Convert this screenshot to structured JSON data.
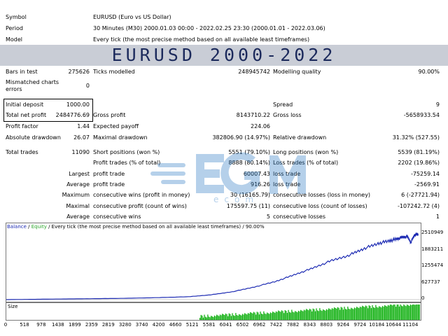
{
  "header": {
    "symbol_label": "Symbol",
    "symbol_value": "EURUSD (Euro vs US Dollar)",
    "period_label": "Period",
    "period_value": "30 Minutes (M30) 2000.01.03 00:00 - 2022.02.25 23:30 (2000.01.01 - 2022.03.06)",
    "model_label": "Model",
    "model_value": "Every tick (the most precise method based on all available least timeframes)"
  },
  "banner": {
    "title": "EURUSD 2000-2022"
  },
  "stats": {
    "bars_label": "Bars in test",
    "bars_value": "275626",
    "ticks_label": "Ticks modelled",
    "ticks_value": "248945742",
    "quality_label": "Modelling quality",
    "quality_value": "90.00%",
    "mismatch_label_1": "Mismatched charts",
    "mismatch_label_2": "errors",
    "mismatch_value": "0",
    "deposit_label": "Initial deposit",
    "deposit_value": "1000.00",
    "spread_label": "Spread",
    "spread_value": "9",
    "net_label": "Total net profit",
    "net_value": "2484776.69",
    "gross_profit_label": "Gross profit",
    "gross_profit_value": "8143710.22",
    "gross_loss_label": "Gross loss",
    "gross_loss_value": "-5658933.54",
    "pf_label": "Profit factor",
    "pf_value": "1.44",
    "payoff_label": "Expected payoff",
    "payoff_value": "224.06",
    "abs_dd_label": "Absolute drawdown",
    "abs_dd_value": "26.07",
    "max_dd_label": "Maximal drawdown",
    "max_dd_value": "382806.90 (14.97%)",
    "rel_dd_label": "Relative drawdown",
    "rel_dd_value": "31.32% (527.55)",
    "trades_label": "Total trades",
    "trades_value": "11090",
    "short_label": "Short positions (won %)",
    "short_value": "5551 (79.10%)",
    "long_label": "Long positions (won %)",
    "long_value": "5539 (81.19%)",
    "profit_trades_label": "Profit trades (% of total)",
    "profit_trades_value": "8888 (80.14%)",
    "loss_trades_label": "Loss trades (% of total)",
    "loss_trades_value": "2202 (19.86%)",
    "largest_label": "Largest",
    "largest_profit_label": "profit trade",
    "largest_profit_value": "60007.43",
    "largest_loss_label": "loss trade",
    "largest_loss_value": "-75259.14",
    "average_label": "Average",
    "average_profit_label": "profit trade",
    "average_profit_value": "916.26",
    "average_loss_label": "loss trade",
    "average_loss_value": "-2569.91",
    "maximum_label": "Maximum",
    "cons_wins_label": "consecutive wins (profit in money)",
    "cons_wins_value": "30 (16165.79)",
    "cons_losses_label": "consecutive losses (loss in money)",
    "cons_losses_value": "6 (-27721.94)",
    "maximal_label": "Maximal",
    "cons_profit_label": "consecutive profit (count of wins)",
    "cons_profit_value": "175597.75 (11)",
    "cons_loss_label": "consecutive loss (count of losses)",
    "cons_loss_value": "-107242.72 (4)",
    "avg_cons_label": "Average",
    "avg_cons_wins_label": "consecutive wins",
    "avg_cons_wins_value": "5",
    "avg_cons_losses_label": "consecutive losses",
    "avg_cons_losses_value": "1"
  },
  "chart_data": {
    "type": "line",
    "legend": {
      "balance": "Balance",
      "sep": " / ",
      "equity": "Equity",
      "text": " / Every tick (the most precise method based on all available least timeframes) / 90.00%"
    },
    "y_ticks": [
      "2510949",
      "1883211",
      "1255474",
      "627737",
      "0"
    ],
    "y_values": [
      2510949,
      1883211,
      1255474,
      627737,
      0
    ],
    "ylim": [
      0,
      2650000
    ],
    "x_ticks": [
      "0",
      "518",
      "978",
      "1438",
      "1899",
      "2359",
      "2819",
      "3280",
      "3740",
      "4200",
      "4660",
      "5121",
      "5581",
      "6041",
      "6502",
      "6962",
      "7422",
      "7882",
      "8343",
      "8803",
      "9264",
      "9724",
      "10184",
      "10644",
      "11104"
    ],
    "xlim": [
      0,
      11370
    ],
    "balance_x": [
      0,
      1000,
      2000,
      3000,
      4000,
      5000,
      5600,
      6200,
      6800,
      7400,
      7900,
      8400,
      8900,
      9400,
      9800,
      10200,
      10500,
      10700,
      10850,
      11000,
      11100,
      11200,
      11300
    ],
    "balance_y": [
      0,
      15000,
      30000,
      45000,
      70000,
      110000,
      180000,
      300000,
      480000,
      700000,
      950000,
      1200000,
      1480000,
      1700000,
      1950000,
      2150000,
      2250000,
      2320000,
      2380000,
      2420000,
      2200000,
      2480000,
      2510949
    ],
    "size_label": "Size",
    "size_start_x": 5300
  },
  "colors": {
    "balance": "#1d2bb3",
    "equity": "#2aa52a",
    "size": "#13b113"
  },
  "watermark": {
    "brand_top": "EGM",
    "brand_bottom": "ecom"
  }
}
